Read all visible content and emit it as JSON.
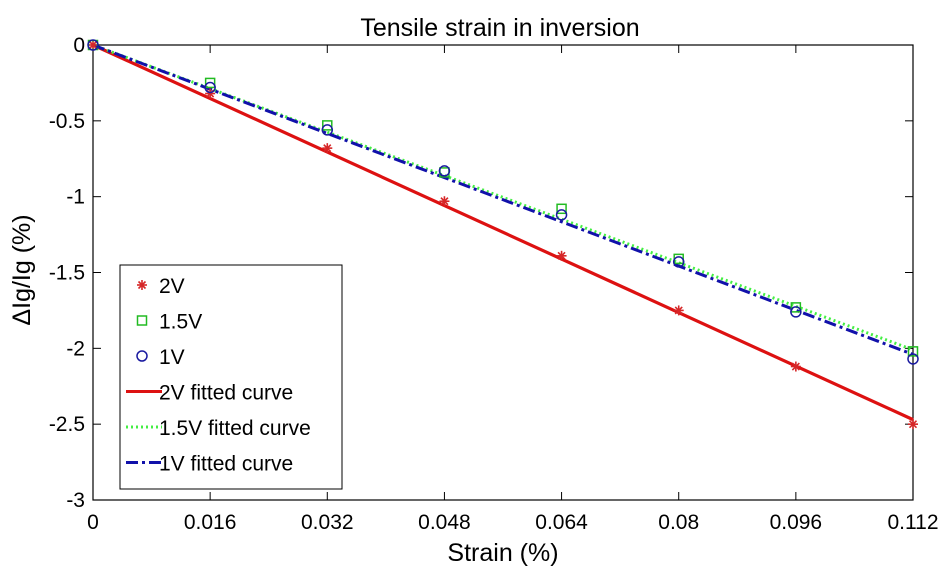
{
  "chart_data": {
    "type": "line",
    "title": "Tensile strain in inversion",
    "xlabel": "Strain (%)",
    "ylabel": "ΔIg/Ig (%)",
    "xlim": [
      0,
      0.112
    ],
    "ylim": [
      -3,
      0
    ],
    "xticks": [
      0,
      0.016,
      0.032,
      0.048,
      0.064,
      0.08,
      0.096,
      0.112
    ],
    "xtick_labels": [
      "0",
      "0.016",
      "0.032",
      "0.048",
      "0.064",
      "0.08",
      "0.096",
      "0.112"
    ],
    "yticks": [
      0,
      -0.5,
      -1,
      -1.5,
      -2,
      -2.5,
      -3
    ],
    "ytick_labels": [
      "0",
      "-0.5",
      "-1",
      "-1.5",
      "-2",
      "-2.5",
      "-3"
    ],
    "grid": false,
    "legend_position": "bottom-left",
    "series": [
      {
        "name": "2V",
        "kind": "scatter",
        "marker": "asterisk",
        "color": "#d62728",
        "x": [
          0,
          0.016,
          0.032,
          0.048,
          0.064,
          0.08,
          0.096,
          0.112
        ],
        "y": [
          0,
          -0.32,
          -0.68,
          -1.03,
          -1.39,
          -1.75,
          -2.12,
          -2.5
        ]
      },
      {
        "name": "1.5V",
        "kind": "scatter",
        "marker": "square",
        "color": "#22bb22",
        "x": [
          0,
          0.016,
          0.032,
          0.048,
          0.064,
          0.08,
          0.096,
          0.112
        ],
        "y": [
          0,
          -0.25,
          -0.53,
          -0.84,
          -1.08,
          -1.41,
          -1.73,
          -2.02
        ]
      },
      {
        "name": "1V",
        "kind": "scatter",
        "marker": "circle",
        "color": "#1a1aa0",
        "x": [
          0,
          0.016,
          0.032,
          0.048,
          0.064,
          0.08,
          0.096,
          0.112
        ],
        "y": [
          0,
          -0.28,
          -0.56,
          -0.83,
          -1.12,
          -1.43,
          -1.76,
          -2.07
        ]
      },
      {
        "name": "2V fitted curve",
        "kind": "line",
        "line_style": "solid",
        "color": "#dd1111",
        "x": [
          0,
          0.112
        ],
        "y": [
          0,
          -2.47
        ]
      },
      {
        "name": "1.5V fitted curve",
        "kind": "line",
        "line_style": "dotted",
        "color": "#44ee44",
        "x": [
          0,
          0.112
        ],
        "y": [
          0,
          -2.01
        ]
      },
      {
        "name": "1V fitted curve",
        "kind": "line",
        "line_style": "dash-dot",
        "color": "#1111aa",
        "x": [
          0,
          0.112
        ],
        "y": [
          0,
          -2.04
        ]
      }
    ]
  }
}
